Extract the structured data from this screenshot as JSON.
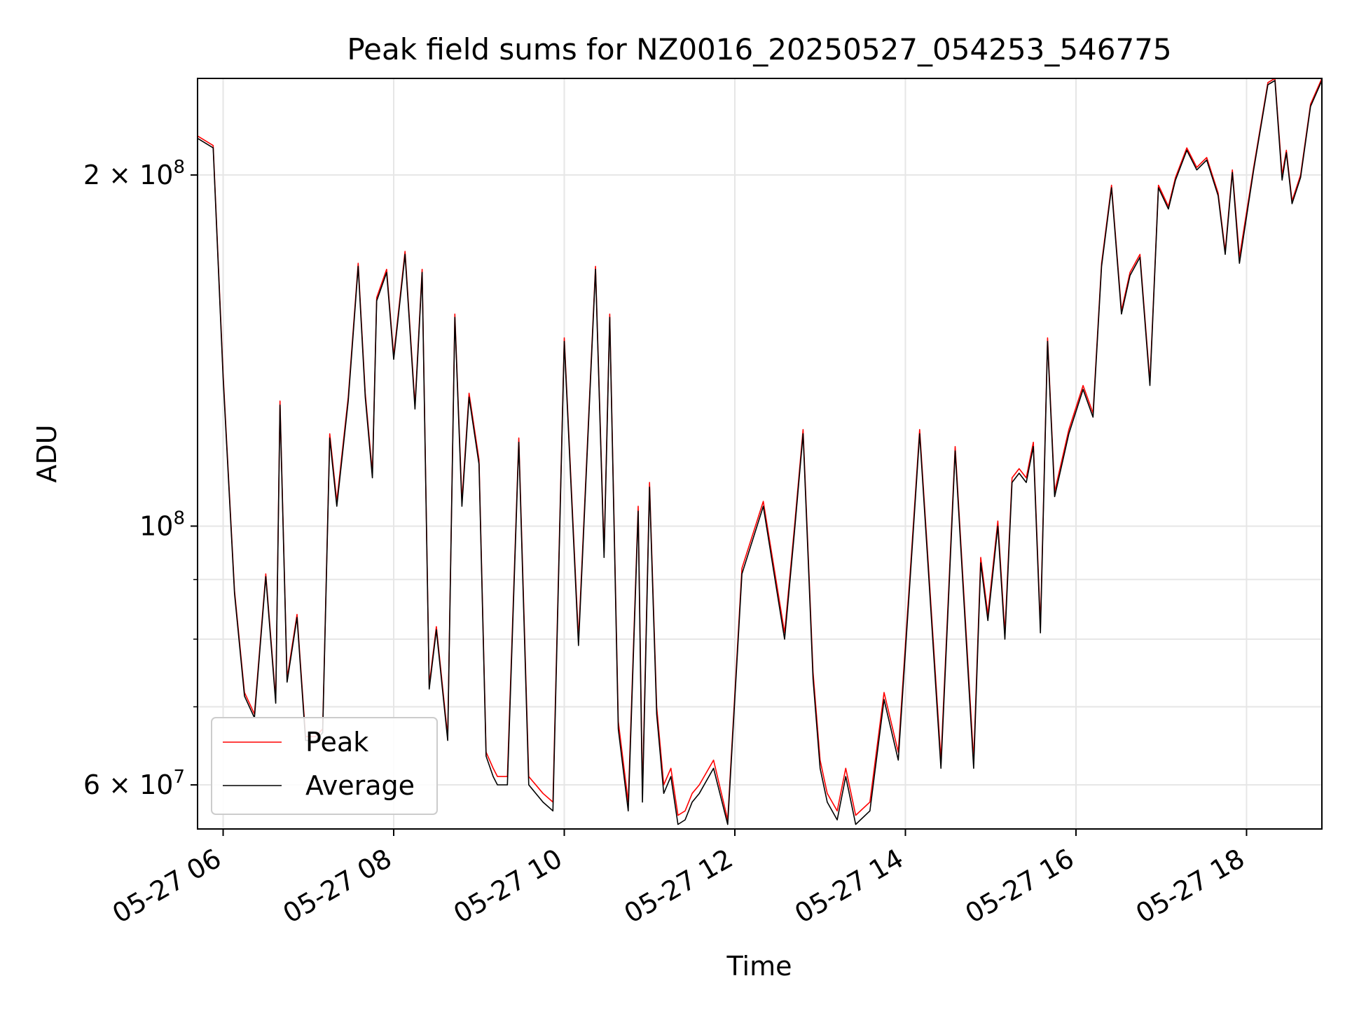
{
  "chart_data": {
    "type": "line",
    "title": "Peak field sums for NZ0016_20250527_054253_546775",
    "xlabel": "Time",
    "ylabel": "ADU",
    "yscale": "log",
    "xlim": [
      "2025-05-27 05:42",
      "2025-05-27 18:53"
    ],
    "ylim": [
      55000000,
      242000000
    ],
    "grid": true,
    "legend_position": "lower-left",
    "x_ticks": [
      "05-27 06",
      "05-27 08",
      "05-27 10",
      "05-27 12",
      "05-27 14",
      "05-27 16",
      "05-27 18"
    ],
    "y_ticks": [
      {
        "label": "6 × 10^7",
        "base": "6 × 10",
        "exp": "7",
        "value": 60000000
      },
      {
        "label": "10^8",
        "base": "10",
        "exp": "8",
        "value": 100000000
      },
      {
        "label": "2 × 10^8",
        "base": "2 × 10",
        "exp": "8",
        "value": 200000000
      }
    ],
    "minor_y_ticks": [
      70000000,
      80000000,
      90000000
    ],
    "x": [
      "05:42",
      "05:53",
      "06:00",
      "06:08",
      "06:15",
      "06:22",
      "06:30",
      "06:37",
      "06:40",
      "06:45",
      "06:52",
      "06:58",
      "07:05",
      "07:10",
      "07:15",
      "07:20",
      "07:28",
      "07:35",
      "07:40",
      "07:45",
      "07:48",
      "07:55",
      "08:00",
      "08:08",
      "08:15",
      "08:20",
      "08:25",
      "08:30",
      "08:38",
      "08:43",
      "08:48",
      "08:53",
      "09:00",
      "09:05",
      "09:10",
      "09:13",
      "09:20",
      "09:28",
      "09:35",
      "09:45",
      "09:52",
      "10:00",
      "10:10",
      "10:22",
      "10:28",
      "10:32",
      "10:38",
      "10:45",
      "10:52",
      "10:55",
      "11:00",
      "11:05",
      "11:10",
      "11:15",
      "11:20",
      "11:25",
      "11:30",
      "11:35",
      "11:45",
      "11:55",
      "12:05",
      "12:20",
      "12:35",
      "12:42",
      "12:48",
      "12:55",
      "13:00",
      "13:05",
      "13:12",
      "13:18",
      "13:25",
      "13:35",
      "13:45",
      "13:55",
      "14:10",
      "14:25",
      "14:35",
      "14:48",
      "14:53",
      "14:58",
      "15:05",
      "15:10",
      "15:15",
      "15:20",
      "15:25",
      "15:30",
      "15:35",
      "15:40",
      "15:45",
      "15:55",
      "16:05",
      "16:12",
      "16:18",
      "16:25",
      "16:32",
      "16:38",
      "16:45",
      "16:52",
      "16:58",
      "17:05",
      "17:10",
      "17:18",
      "17:25",
      "17:32",
      "17:40",
      "17:45",
      "17:50",
      "17:55",
      "18:05",
      "18:15",
      "18:20",
      "18:25",
      "18:28",
      "18:32",
      "18:38",
      "18:45",
      "18:53"
    ],
    "series": [
      {
        "name": "Peak",
        "color": "#ff0000",
        "values": [
          216000000,
          212000000,
          135000000,
          88000000,
          72000000,
          69000000,
          91000000,
          71000000,
          128000000,
          74000000,
          84000000,
          66000000,
          66000000,
          67000000,
          120000000,
          105000000,
          129000000,
          168000000,
          130000000,
          111000000,
          157000000,
          166000000,
          140000000,
          172000000,
          127000000,
          166000000,
          73000000,
          82000000,
          66000000,
          152000000,
          105000000,
          130000000,
          114000000,
          64000000,
          62000000,
          61000000,
          61000000,
          119000000,
          61000000,
          59000000,
          58000000,
          145000000,
          80000000,
          167000000,
          95000000,
          152000000,
          68000000,
          58000000,
          104000000,
          59000000,
          109000000,
          70000000,
          60000000,
          62000000,
          56500000,
          57000000,
          59000000,
          60000000,
          63000000,
          56000000,
          92000000,
          105000000,
          81000000,
          100000000,
          121000000,
          75000000,
          63000000,
          59000000,
          57000000,
          62000000,
          56500000,
          58000000,
          72000000,
          64000000,
          121000000,
          63000000,
          117000000,
          63000000,
          94000000,
          84000000,
          101000000,
          81000000,
          110000000,
          112000000,
          110000000,
          118000000,
          82000000,
          145000000,
          107000000,
          121000000,
          132000000,
          125000000,
          168000000,
          196000000,
          153000000,
          165000000,
          171000000,
          133000000,
          196000000,
          188000000,
          199000000,
          211000000,
          203000000,
          207000000,
          193000000,
          172000000,
          202000000,
          170000000,
          203000000,
          240000000,
          242000000,
          200000000,
          210000000,
          190000000,
          200000000,
          230000000,
          242000000
        ]
      },
      {
        "name": "Average",
        "color": "#000000",
        "values": [
          215000000,
          211000000,
          134000000,
          87500000,
          71500000,
          68500000,
          90500000,
          70500000,
          127000000,
          73500000,
          83500000,
          65500000,
          65500000,
          66500000,
          119000000,
          104000000,
          128000000,
          167000000,
          129000000,
          110000000,
          156000000,
          165000000,
          139000000,
          171000000,
          126000000,
          165000000,
          72500000,
          81500000,
          65500000,
          151000000,
          104000000,
          129000000,
          113000000,
          63500000,
          61000000,
          60000000,
          60000000,
          118000000,
          60000000,
          58000000,
          57000000,
          144000000,
          79000000,
          166000000,
          94000000,
          151000000,
          67000000,
          57000000,
          103000000,
          58000000,
          108000000,
          69000000,
          59000000,
          61000000,
          55500000,
          56000000,
          58000000,
          59000000,
          62000000,
          55500000,
          91000000,
          104000000,
          80000000,
          99000000,
          120000000,
          74000000,
          62000000,
          58000000,
          56000000,
          61000000,
          55500000,
          57000000,
          71000000,
          63000000,
          120000000,
          62000000,
          116000000,
          62000000,
          93000000,
          83000000,
          100000000,
          80000000,
          109000000,
          111000000,
          109000000,
          117000000,
          81000000,
          144000000,
          106000000,
          120000000,
          131000000,
          124000000,
          167000000,
          195000000,
          152000000,
          164000000,
          170000000,
          132000000,
          195000000,
          187000000,
          198000000,
          210000000,
          202000000,
          206000000,
          192000000,
          171000000,
          201000000,
          168000000,
          202000000,
          239000000,
          241000000,
          198000000,
          209000000,
          189000000,
          199000000,
          229000000,
          241000000
        ]
      }
    ]
  }
}
